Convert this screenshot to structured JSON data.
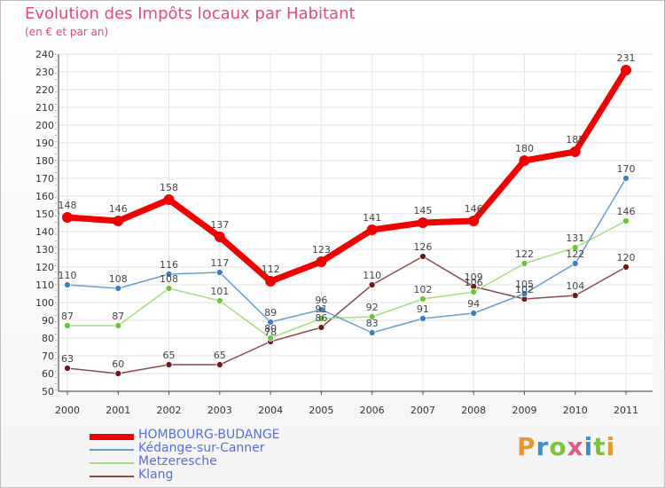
{
  "header": {
    "title": "Evolution des Impôts locaux par Habitant",
    "subtitle": "(en € et par an)"
  },
  "logo": {
    "text": "Proxiti",
    "letters": [
      "P",
      "r",
      "o",
      "x",
      "i",
      "t",
      "i"
    ],
    "colors": [
      "#e8962e",
      "#3a8fd0",
      "#7fc241",
      "#e05a8a",
      "#3a8fd0",
      "#7fc241",
      "#e8962e"
    ]
  },
  "chart_data": {
    "type": "line",
    "title": "Evolution des Impôts locaux par Habitant",
    "subtitle": "(en € et par an)",
    "xlabel": "",
    "ylabel": "",
    "categories": [
      "2000",
      "2001",
      "2002",
      "2003",
      "2004",
      "2005",
      "2006",
      "2007",
      "2008",
      "2009",
      "2010",
      "2011"
    ],
    "ylim": [
      50,
      240
    ],
    "yticks": [
      50,
      60,
      70,
      80,
      90,
      100,
      110,
      120,
      130,
      140,
      150,
      160,
      170,
      180,
      190,
      200,
      210,
      220,
      230,
      240
    ],
    "grid": true,
    "legend_position": "bottom-left",
    "series": [
      {
        "name": "HOMBOURG-BUDANGE",
        "color": "#ee0000",
        "point_color": "#ee0000",
        "width": 7,
        "r": 6,
        "values": [
          148,
          146,
          158,
          137,
          112,
          123,
          141,
          145,
          146,
          180,
          185,
          231
        ],
        "labels": [
          "148",
          "146",
          "158",
          "137",
          "112",
          "123",
          "141",
          "145",
          "146",
          "180",
          "185",
          "231"
        ]
      },
      {
        "name": "Kédange-sur-Canner",
        "color": "#6a9dcc",
        "point_color": "#3a7fc0",
        "width": 1.5,
        "r": 3.5,
        "values": [
          110,
          108,
          116,
          117,
          89,
          96,
          83,
          91,
          94,
          105,
          122,
          170
        ],
        "labels": [
          "110",
          "108",
          "116",
          "117",
          "89",
          "96",
          "83",
          "91",
          "94",
          "105",
          "122",
          "170"
        ]
      },
      {
        "name": "Metzeresche",
        "color": "#a6dc84",
        "point_color": "#6cc43c",
        "width": 1.5,
        "r": 3.5,
        "values": [
          87,
          87,
          108,
          101,
          80,
          91,
          92,
          102,
          106,
          122,
          131,
          146
        ],
        "labels": [
          "87",
          "87",
          "108",
          "101",
          "80",
          "91",
          "92",
          "102",
          "106",
          "122",
          "131",
          "146"
        ]
      },
      {
        "name": "Klang",
        "color": "#8a4a4a",
        "point_color": "#6a1a1a",
        "width": 1.5,
        "r": 3.5,
        "values": [
          63,
          60,
          65,
          65,
          78,
          86,
          110,
          126,
          109,
          102,
          104,
          120
        ],
        "labels": [
          "63",
          "60",
          "65",
          "65",
          "78",
          "86",
          "110",
          "126",
          "109",
          "102",
          "104",
          "120"
        ]
      }
    ]
  }
}
